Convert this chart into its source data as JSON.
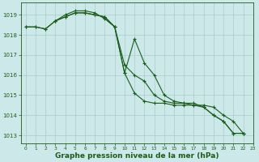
{
  "background_color": "#cce8e8",
  "grid_color": "#aacccc",
  "line_color": "#1a5c1a",
  "marker_color": "#1a5c1a",
  "xlabel": "Graphe pression niveau de la mer (hPa)",
  "xlabel_fontsize": 6.5,
  "ylim": [
    1012.6,
    1019.6
  ],
  "xlim": [
    -0.5,
    23
  ],
  "yticks": [
    1013,
    1014,
    1015,
    1016,
    1017,
    1018,
    1019
  ],
  "xticks": [
    0,
    1,
    2,
    3,
    4,
    5,
    6,
    7,
    8,
    9,
    10,
    11,
    12,
    13,
    14,
    15,
    16,
    17,
    18,
    19,
    20,
    21,
    22,
    23
  ],
  "series1_x": [
    0,
    1,
    2,
    3,
    4,
    5,
    6,
    7,
    8,
    9,
    10,
    11,
    12,
    13,
    14,
    15,
    16,
    17,
    18,
    19,
    20,
    21,
    22
  ],
  "series1_y": [
    1018.4,
    1018.4,
    1018.3,
    1018.7,
    1018.9,
    1019.1,
    1019.1,
    1019.0,
    1018.9,
    1018.4,
    1016.1,
    1015.1,
    1014.7,
    1014.6,
    1014.6,
    1014.5,
    1014.5,
    1014.5,
    1014.4,
    1014.0,
    1013.7,
    1013.1,
    1013.1
  ],
  "series2_x": [
    0,
    1,
    2,
    3,
    4,
    5,
    6,
    7,
    8,
    9,
    10,
    11,
    12,
    13,
    14,
    15,
    16,
    17,
    18,
    19,
    20,
    21,
    22
  ],
  "series2_y": [
    1018.4,
    1018.4,
    1018.3,
    1018.7,
    1018.9,
    1019.1,
    1019.1,
    1019.0,
    1018.9,
    1018.4,
    1016.1,
    1017.8,
    1016.6,
    1016.0,
    1015.0,
    1014.7,
    1014.6,
    1014.6,
    1014.4,
    1014.0,
    1013.7,
    1013.1,
    1013.1
  ],
  "series3_x": [
    3,
    4,
    5,
    6,
    7,
    8,
    9,
    10,
    11,
    12,
    13,
    14,
    15,
    16,
    17,
    18,
    19,
    20,
    21,
    22
  ],
  "series3_y": [
    1018.7,
    1019.0,
    1019.2,
    1019.2,
    1019.1,
    1018.8,
    1018.4,
    1016.5,
    1016.0,
    1015.7,
    1015.0,
    1014.7,
    1014.6,
    1014.6,
    1014.5,
    1014.5,
    1014.4,
    1014.0,
    1013.7,
    1013.1
  ]
}
